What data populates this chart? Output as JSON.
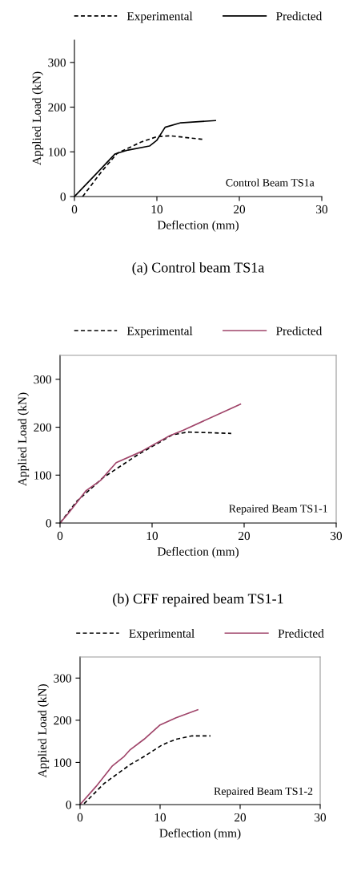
{
  "chart_data": [
    {
      "type": "line",
      "xlabel": "Deflection (mm)",
      "ylabel": "Applied Load (kN)",
      "xlim": [
        0,
        30
      ],
      "ylim": [
        0,
        350
      ],
      "xticks": [
        0,
        10,
        20,
        30
      ],
      "yticks": [
        0,
        100,
        200,
        300
      ],
      "legend": "top",
      "grid": false,
      "annotations": [
        "Control Beam TS1a",
        "(a) Control beam TS1a"
      ],
      "series": [
        {
          "name": "Experimental",
          "color": "#000000",
          "line_style": "dashed",
          "x": [
            1,
            3.3,
            5.2,
            8.1,
            10,
            11.6,
            15.5
          ],
          "values": [
            0,
            56,
            97,
            122,
            134,
            136,
            128
          ]
        },
        {
          "name": "Predicted",
          "color": "#000000",
          "line_style": "solid",
          "x": [
            0,
            2.6,
            4.9,
            6.5,
            9.1,
            10,
            11,
            12.9,
            17.1
          ],
          "values": [
            0,
            50,
            95,
            104,
            113,
            126,
            155,
            165,
            170
          ]
        }
      ]
    },
    {
      "type": "line",
      "xlabel": "Deflection (mm)",
      "ylabel": "Applied Load (kN)",
      "xlim": [
        0,
        30
      ],
      "ylim": [
        0,
        350
      ],
      "xticks": [
        0,
        10,
        20,
        30
      ],
      "yticks": [
        0,
        100,
        200,
        300
      ],
      "legend": "top",
      "grid": false,
      "annotations": [
        "Repaired Beam TS1-1",
        "(b) CFF repaired beam TS1-1"
      ],
      "series": [
        {
          "name": "Experimental",
          "color": "#000000",
          "line_style": "dashed",
          "x": [
            0,
            1.8,
            4.7,
            8.4,
            12.2,
            13.9,
            18.6
          ],
          "values": [
            0,
            45,
            95,
            142,
            184,
            190,
            187
          ]
        },
        {
          "name": "Predicted",
          "color": "#a0456a",
          "line_style": "solid",
          "x": [
            0,
            0.9,
            2.8,
            4.4,
            6.1,
            8.7,
            11.9,
            13.4,
            19.6
          ],
          "values": [
            0,
            20,
            67,
            89,
            126,
            148,
            182,
            194,
            248
          ]
        }
      ]
    },
    {
      "type": "line",
      "xlabel": "Deflection (mm)",
      "ylabel": "Applied Load (kN)",
      "xlim": [
        0,
        30
      ],
      "ylim": [
        0,
        350
      ],
      "xticks": [
        0,
        10,
        20,
        30
      ],
      "yticks": [
        0,
        100,
        200,
        300
      ],
      "legend": "top",
      "grid": false,
      "annotations": [
        "Repaired Beam TS1-2"
      ],
      "series": [
        {
          "name": "Experimental",
          "color": "#000000",
          "line_style": "dashed",
          "x": [
            0.5,
            3,
            6.2,
            8,
            10.3,
            12,
            14,
            16.3
          ],
          "values": [
            2,
            50,
            94,
            114,
            142,
            155,
            163,
            163
          ]
        },
        {
          "name": "Predicted",
          "color": "#a0456a",
          "line_style": "solid",
          "x": [
            0,
            2,
            4,
            5.5,
            6.2,
            8,
            10,
            12,
            14.7
          ],
          "values": [
            0,
            43,
            91,
            114,
            129,
            155,
            189,
            206,
            225
          ]
        }
      ]
    }
  ]
}
